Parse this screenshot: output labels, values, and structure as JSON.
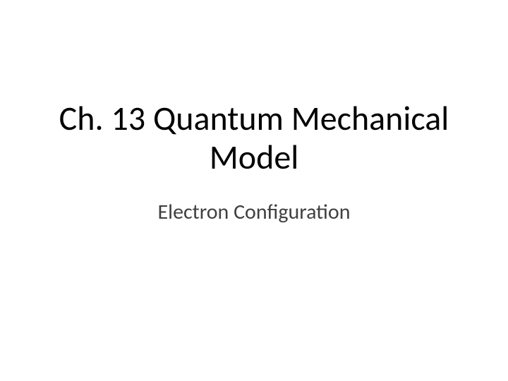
{
  "slide": {
    "title_line1": "Ch. 13 Quantum Mechanical",
    "title_line2": "Model",
    "subtitle": "Electron Configuration",
    "background_color": "#ffffff",
    "title_color": "#000000",
    "subtitle_color": "#404040",
    "title_fontsize": 48,
    "subtitle_fontsize": 30,
    "font_family": "Calibri"
  }
}
